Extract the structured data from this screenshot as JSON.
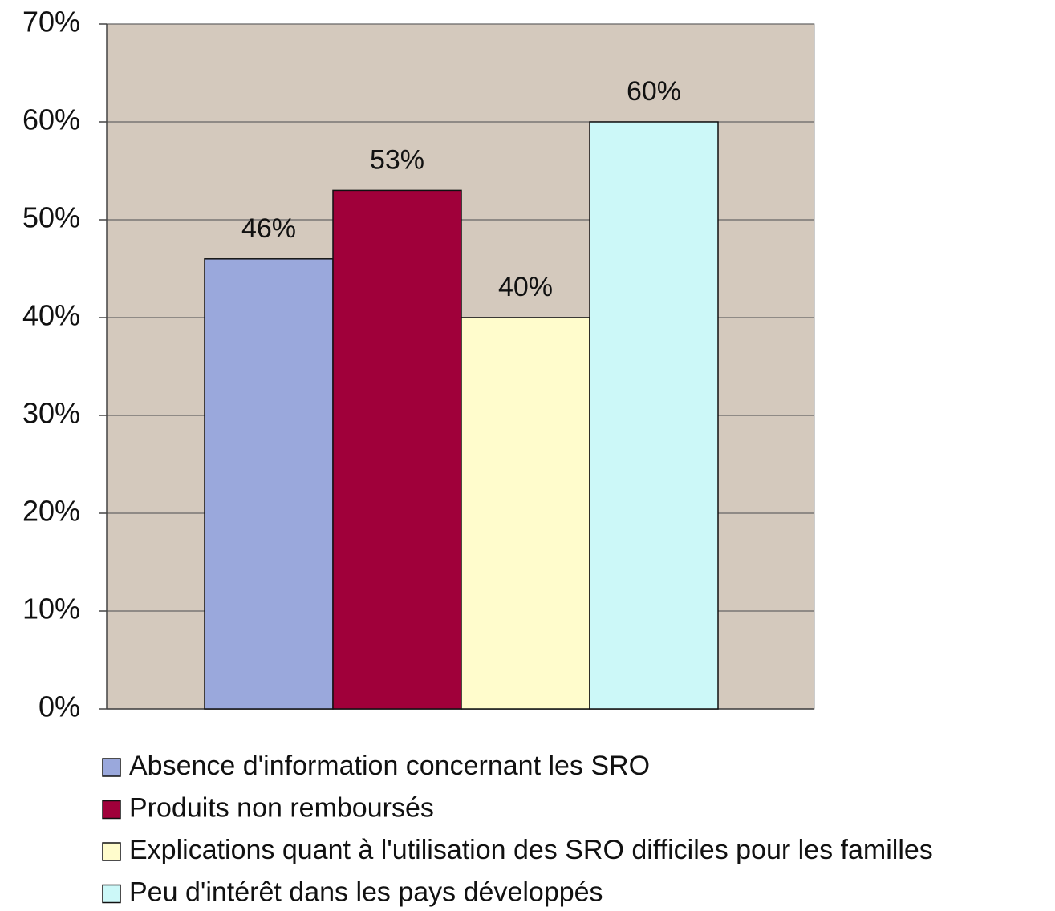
{
  "chart_data": {
    "type": "bar",
    "series": [
      {
        "name": "Absence d'information concernant les SRO",
        "color": "#9aa8dc",
        "values": [
          46
        ],
        "value_labels": [
          "46%"
        ]
      },
      {
        "name": "Produits non remboursés",
        "color": "#a0003a",
        "values": [
          53
        ],
        "value_labels": [
          "53%"
        ]
      },
      {
        "name": "Explications quant à l'utilisation des SRO difficiles pour les familles",
        "color": "#fffccc",
        "values": [
          40
        ],
        "value_labels": [
          "40%"
        ]
      },
      {
        "name": "Peu d'intérêt dans les pays développés",
        "color": "#ccf8f8",
        "values": [
          60
        ],
        "value_labels": [
          "60%"
        ]
      }
    ],
    "ylim": [
      0,
      70
    ],
    "yticks": [
      {
        "value": 0,
        "label": "0%"
      },
      {
        "value": 10,
        "label": "10%"
      },
      {
        "value": 20,
        "label": "20%"
      },
      {
        "value": 30,
        "label": "30%"
      },
      {
        "value": 40,
        "label": "40%"
      },
      {
        "value": 50,
        "label": "50%"
      },
      {
        "value": 60,
        "label": "60%"
      },
      {
        "value": 70,
        "label": "70%"
      }
    ],
    "grid": true,
    "legend": "bottom"
  }
}
